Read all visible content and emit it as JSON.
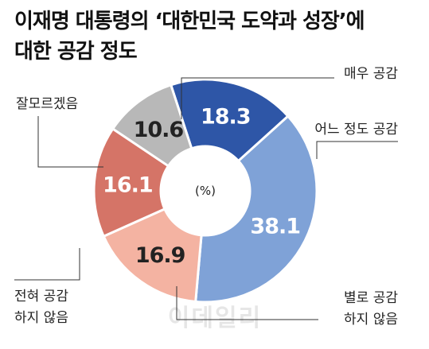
{
  "title_line1": "이재명 대통령의 ‘대한민국 도약과 성장’에",
  "title_line2": "대한 공감 정도",
  "unit_label": "(%)",
  "watermark": "이데일리",
  "chart_data": {
    "type": "pie",
    "variant": "donut",
    "title": "이재명 대통령의 ‘대한민국 도약과 성장’에 대한 공감 정도",
    "unit": "%",
    "categories": [
      "매우 공감",
      "어느 정도 공감",
      "별로 공감 하지 않음",
      "전혀 공감 하지 않음",
      "잘모르겠음"
    ],
    "values": [
      18.3,
      38.1,
      16.9,
      16.1,
      10.6
    ],
    "value_labels": [
      "18.3",
      "38.1",
      "16.9",
      "16.1",
      "10.6"
    ],
    "label_lines": [
      [
        "매우 공감"
      ],
      [
        "어느 정도 공감"
      ],
      [
        "별로 공감",
        "하지 않음"
      ],
      [
        "전혀 공감",
        "하지 않음"
      ],
      [
        "잘모르겠음"
      ]
    ],
    "colors": [
      "#2e56a7",
      "#7fa2d7",
      "#f4b3a2",
      "#d57467",
      "#b8b8b8"
    ],
    "value_text_colors": [
      "#ffffff",
      "#ffffff",
      "#222222",
      "#ffffff",
      "#222222"
    ]
  }
}
